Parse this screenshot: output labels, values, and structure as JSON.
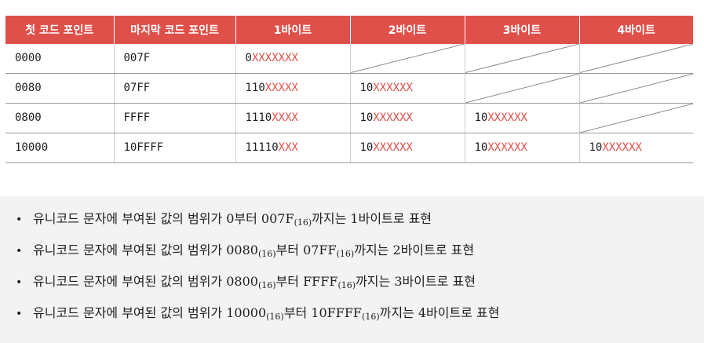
{
  "table": {
    "headers": [
      "첫 코드 포인트",
      "마지막 코드 포인트",
      "1바이트",
      "2바이트",
      "3바이트",
      "4바이트"
    ],
    "rows": [
      {
        "first": "0000",
        "last": "007F",
        "bytes": [
          {
            "prefix": "0",
            "x": "XXXXXXX"
          },
          null,
          null,
          null
        ]
      },
      {
        "first": "0080",
        "last": "07FF",
        "bytes": [
          {
            "prefix": "110",
            "x": "XXXXX"
          },
          {
            "prefix": "10",
            "x": "XXXXXX"
          },
          null,
          null
        ]
      },
      {
        "first": "0800",
        "last": "FFFF",
        "bytes": [
          {
            "prefix": "1110",
            "x": "XXXX"
          },
          {
            "prefix": "10",
            "x": "XXXXXX"
          },
          {
            "prefix": "10",
            "x": "XXXXXX"
          },
          null
        ]
      },
      {
        "first": "10000",
        "last": "10FFFF",
        "bytes": [
          {
            "prefix": "11110",
            "x": "XXX"
          },
          {
            "prefix": "10",
            "x": "XXXXXX"
          },
          {
            "prefix": "10",
            "x": "XXXXXX"
          },
          {
            "prefix": "10",
            "x": "XXXXXX"
          }
        ]
      }
    ]
  },
  "notes": [
    {
      "bullet": "•",
      "before": "유니코드 문자에 부여된 값의 범위가 0부터 007F",
      "sub1": "(16)",
      "middle": "",
      "sub2": "",
      "after": "까지는 1바이트로 표현"
    },
    {
      "bullet": "•",
      "before": "유니코드 문자에 부여된 값의 범위가 0080",
      "sub1": "(16)",
      "middle": "부터 07FF",
      "sub2": "(16)",
      "after": "까지는 2바이트로 표현"
    },
    {
      "bullet": "•",
      "before": "유니코드 문자에 부여된 값의 범위가 0800",
      "sub1": "(16)",
      "middle": "부터 FFFF",
      "sub2": "(16)",
      "after": "까지는 3바이트로 표현"
    },
    {
      "bullet": "•",
      "before": "유니코드 문자에 부여된 값의 범위가 10000",
      "sub1": "(16)",
      "middle": "부터 10FFFF",
      "sub2": "(16)",
      "after": "까지는 4바이트로 표현"
    }
  ],
  "colors": {
    "header_bg": "#e0504a",
    "x_bits": "#e0504a",
    "notes_bg": "#f3f3f3"
  }
}
